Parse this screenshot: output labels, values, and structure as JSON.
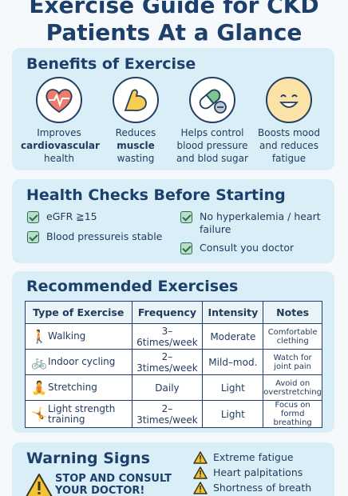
{
  "title": {
    "line1": "Exercise Guide for CKD",
    "line2": "Patients At a Glance"
  },
  "benefits": {
    "heading": "Benefits of Exercise",
    "items": [
      {
        "icon": "heart-pulse-icon",
        "pre": "Improves",
        "bold": "cardiovascular",
        "post": "health"
      },
      {
        "icon": "flexed-arm-icon",
        "pre": "Reduces",
        "bold": "muscle",
        "post": "wasting"
      },
      {
        "icon": "pill-icon",
        "pre": "Helps control",
        "bold": "",
        "post": "blood pressure and blod sugar"
      },
      {
        "icon": "smiley-icon",
        "pre": "Boosts mood",
        "bold": "",
        "post": "and reduces fatigue"
      }
    ]
  },
  "checks": {
    "heading": "Health Checks Before Starting",
    "items": [
      "eGFR ≧15",
      "No hyperkalemia / heart failure",
      "Blood pressureis stable",
      "Consult you doctor"
    ]
  },
  "exercises": {
    "heading": "Recommended Exercises",
    "columns": [
      "Type of Exercise",
      "Frequency",
      "Intensity",
      "Notes"
    ],
    "rows": [
      {
        "icon": "walking-icon",
        "type": "Walking",
        "frequency": "3–6times/week",
        "intensity": "Moderate",
        "notes": "Comfortable clething"
      },
      {
        "icon": "bicycle-icon",
        "type": "Indoor cycling",
        "frequency": "2–3times/week",
        "intensity": "Mild–mod.",
        "notes": "Watch for joint pain"
      },
      {
        "icon": "stretching-icon",
        "type": "Stretching",
        "frequency": "Daily",
        "intensity": "Light",
        "notes": "Avoid on overstretching"
      },
      {
        "icon": "strength-icon",
        "type": "Light strength training",
        "frequency": "2–3times/week",
        "intensity": "Light",
        "notes": "Focus on formd breathing"
      }
    ]
  },
  "warning": {
    "heading": "Warning Signs",
    "stop_line1": "STOP AND CONSULT",
    "stop_line2": "YOUR DOCTOR!",
    "signs": [
      "Extreme fatigue",
      "Heart palpitations",
      "Shortness of breath"
    ],
    "colors": {
      "triangle": "#f2c433",
      "outline": "#3a3320"
    }
  }
}
